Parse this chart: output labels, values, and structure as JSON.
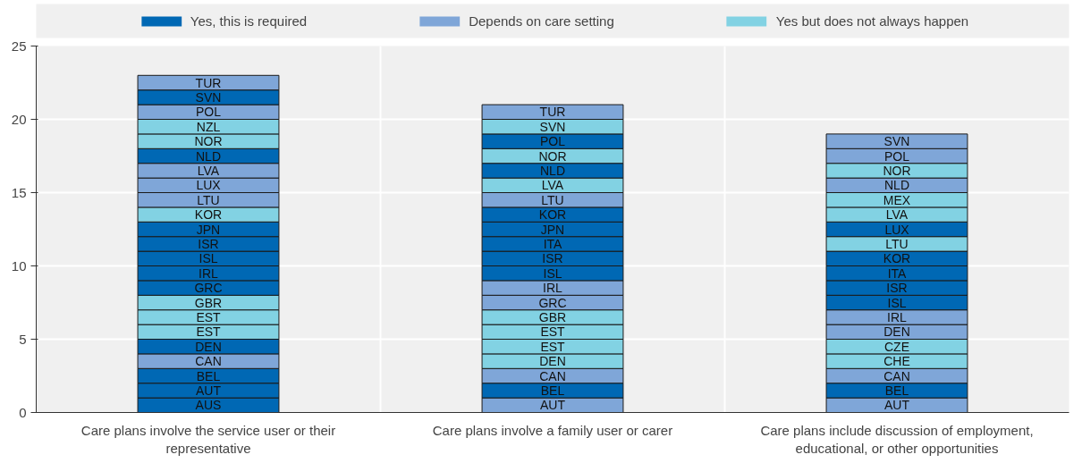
{
  "chart_data": {
    "type": "bar",
    "stacked": true,
    "categories": [
      "Care plans involve the service user or their representative",
      "Care plans involve a family user or carer",
      "Care plans include discussion of employment, educational, or other opportunities"
    ],
    "ylim": [
      0,
      25
    ],
    "yticks": [
      0,
      5,
      10,
      15,
      20,
      25
    ],
    "grid": true,
    "legend": "top",
    "series": [
      {
        "name": "Yes, this is required",
        "color": "#0068b4",
        "values": [
          null,
          null,
          null
        ]
      },
      {
        "name": "Depends on care setting",
        "color": "#7fa6d8",
        "values": [
          null,
          null,
          null
        ]
      },
      {
        "name": "Yes but does not always happen",
        "color": "#82d2e3",
        "values": [
          null,
          null,
          null
        ]
      },
      {
        "values": [
          1,
          1,
          1
        ],
        "colors": [
          "#0068b4",
          "#7fa6d8",
          "#7fa6d8"
        ],
        "value_labels": [
          "AUS",
          "AUT",
          "AUT"
        ]
      },
      {
        "values": [
          1,
          1,
          1
        ],
        "colors": [
          "#0068b4",
          "#0068b4",
          "#0068b4"
        ],
        "value_labels": [
          "AUT",
          "BEL",
          "BEL"
        ]
      },
      {
        "values": [
          1,
          1,
          1
        ],
        "colors": [
          "#0068b4",
          "#7fa6d8",
          "#7fa6d8"
        ],
        "value_labels": [
          "BEL",
          "CAN",
          "CAN"
        ]
      },
      {
        "values": [
          1,
          1,
          1
        ],
        "colors": [
          "#7fa6d8",
          "#82d2e3",
          "#82d2e3"
        ],
        "value_labels": [
          "CAN",
          "DEN",
          "CHE"
        ]
      },
      {
        "values": [
          1,
          1,
          1
        ],
        "colors": [
          "#0068b4",
          "#82d2e3",
          "#82d2e3"
        ],
        "value_labels": [
          "DEN",
          "EST",
          "CZE"
        ]
      },
      {
        "values": [
          1,
          1,
          1
        ],
        "colors": [
          "#82d2e3",
          "#82d2e3",
          "#7fa6d8"
        ],
        "value_labels": [
          "EST",
          "EST",
          "DEN"
        ]
      },
      {
        "values": [
          1,
          1,
          1
        ],
        "colors": [
          "#82d2e3",
          "#82d2e3",
          "#7fa6d8"
        ],
        "value_labels": [
          "EST",
          "GBR",
          "IRL"
        ]
      },
      {
        "values": [
          1,
          1,
          1
        ],
        "colors": [
          "#82d2e3",
          "#7fa6d8",
          "#0068b4"
        ],
        "value_labels": [
          "GBR",
          "GRC",
          "ISL"
        ]
      },
      {
        "values": [
          1,
          1,
          1
        ],
        "colors": [
          "#0068b4",
          "#7fa6d8",
          "#0068b4"
        ],
        "value_labels": [
          "GRC",
          "IRL",
          "ISR"
        ]
      },
      {
        "values": [
          1,
          1,
          1
        ],
        "colors": [
          "#0068b4",
          "#0068b4",
          "#0068b4"
        ],
        "value_labels": [
          "IRL",
          "ISL",
          "ITA"
        ]
      },
      {
        "values": [
          1,
          1,
          1
        ],
        "colors": [
          "#0068b4",
          "#0068b4",
          "#0068b4"
        ],
        "value_labels": [
          "ISL",
          "ISR",
          "KOR"
        ]
      },
      {
        "values": [
          1,
          1,
          1
        ],
        "colors": [
          "#0068b4",
          "#0068b4",
          "#82d2e3"
        ],
        "value_labels": [
          "ISR",
          "ITA",
          "LTU"
        ]
      },
      {
        "values": [
          1,
          1,
          1
        ],
        "colors": [
          "#0068b4",
          "#0068b4",
          "#0068b4"
        ],
        "value_labels": [
          "JPN",
          "JPN",
          "LUX"
        ]
      },
      {
        "values": [
          1,
          1,
          1
        ],
        "colors": [
          "#82d2e3",
          "#0068b4",
          "#82d2e3"
        ],
        "value_labels": [
          "KOR",
          "KOR",
          "LVA"
        ]
      },
      {
        "values": [
          1,
          1,
          1
        ],
        "colors": [
          "#7fa6d8",
          "#7fa6d8",
          "#82d2e3"
        ],
        "value_labels": [
          "LTU",
          "LTU",
          "MEX"
        ]
      },
      {
        "values": [
          1,
          1,
          1
        ],
        "colors": [
          "#7fa6d8",
          "#82d2e3",
          "#7fa6d8"
        ],
        "value_labels": [
          "LUX",
          "LVA",
          "NLD"
        ]
      },
      {
        "values": [
          1,
          1,
          1
        ],
        "colors": [
          "#7fa6d8",
          "#0068b4",
          "#82d2e3"
        ],
        "value_labels": [
          "LVA",
          "NLD",
          "NOR"
        ]
      },
      {
        "values": [
          1,
          1,
          1
        ],
        "colors": [
          "#0068b4",
          "#82d2e3",
          "#7fa6d8"
        ],
        "value_labels": [
          "NLD",
          "NOR",
          "POL"
        ]
      },
      {
        "values": [
          1,
          1,
          1
        ],
        "colors": [
          "#82d2e3",
          "#0068b4",
          "#7fa6d8"
        ],
        "value_labels": [
          "NOR",
          "POL",
          "SVN"
        ]
      },
      {
        "values": [
          1,
          1,
          null
        ],
        "colors": [
          "#82d2e3",
          "#82d2e3",
          null
        ],
        "value_labels": [
          "NZL",
          "SVN",
          null
        ]
      },
      {
        "values": [
          1,
          1,
          null
        ],
        "colors": [
          "#7fa6d8",
          "#7fa6d8",
          null
        ],
        "value_labels": [
          "POL",
          "TUR",
          null
        ]
      },
      {
        "values": [
          1,
          null,
          null
        ],
        "colors": [
          "#0068b4",
          null,
          null
        ],
        "value_labels": [
          "SVN",
          null,
          null
        ]
      },
      {
        "values": [
          1,
          null,
          null
        ],
        "colors": [
          "#7fa6d8",
          null,
          null
        ],
        "value_labels": [
          "TUR",
          null,
          null
        ]
      }
    ]
  }
}
